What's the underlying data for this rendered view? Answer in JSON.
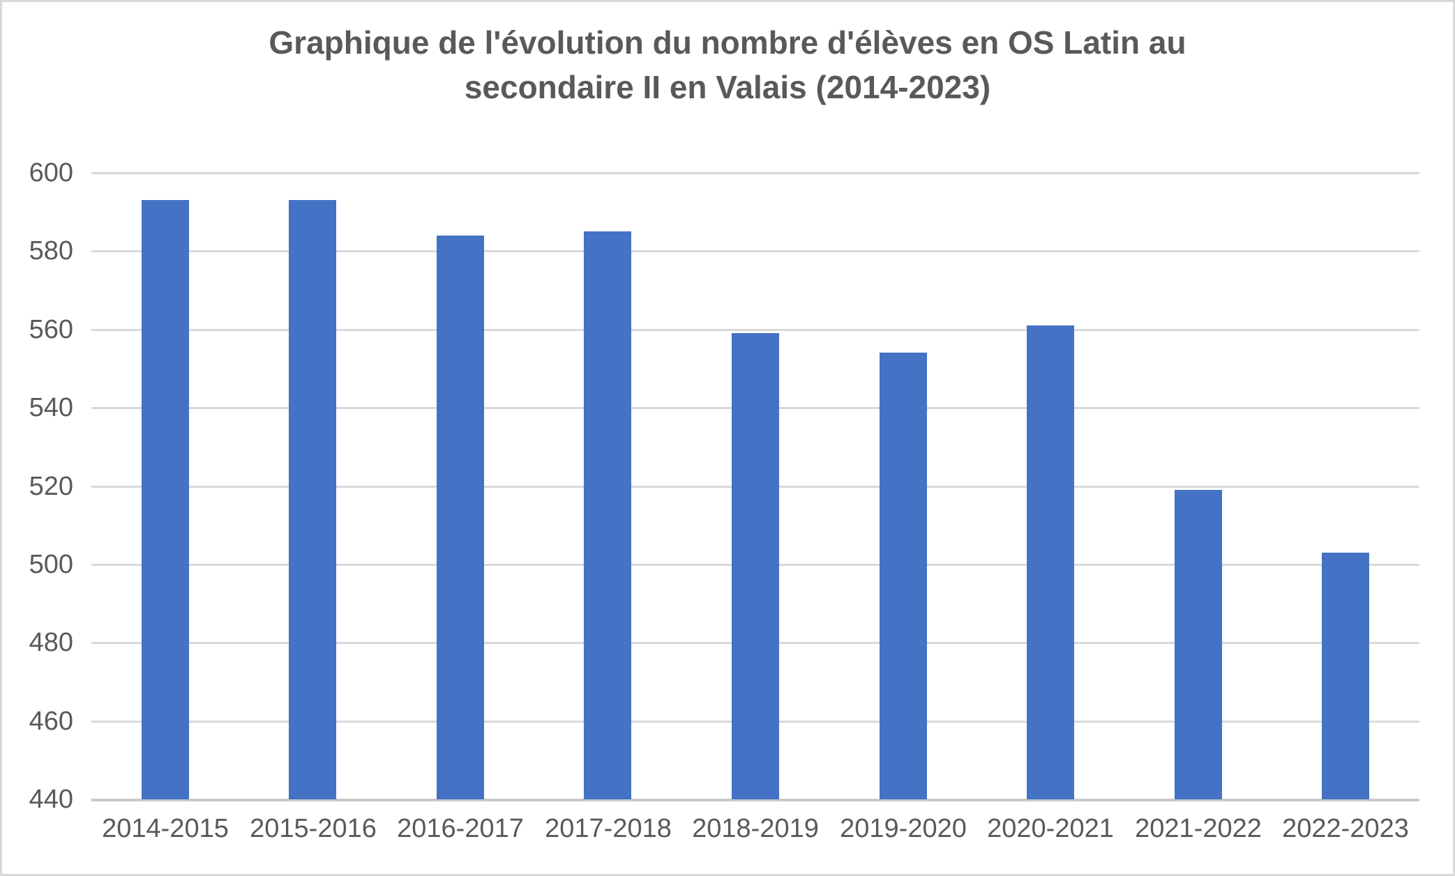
{
  "header": {
    "title_lines": [
      "Graphique de l'évolution du nombre d'élèves en OS Latin au",
      "secondaire II en Valais (2014-2023)"
    ]
  },
  "chart_data": {
    "type": "bar",
    "title": "Graphique de l'évolution du nombre d'élèves en OS Latin au secondaire II en Valais (2014-2023)",
    "categories": [
      "2014-2015",
      "2015-2016",
      "2016-2017",
      "2017-2018",
      "2018-2019",
      "2019-2020",
      "2020-2021",
      "2021-2022",
      "2022-2023"
    ],
    "values": [
      593,
      593,
      584,
      585,
      559,
      554,
      561,
      519,
      503
    ],
    "xlabel": "",
    "ylabel": "",
    "ylim": [
      440,
      600
    ],
    "ytick_step": 20,
    "yticks": [
      600,
      580,
      560,
      540,
      520,
      500,
      480,
      460,
      440
    ],
    "grid": true,
    "legend": false,
    "colors": {
      "bar": "#4472C4",
      "text": "#595959",
      "gridline": "#D9D9D9",
      "axis_line": "#C9C9C9",
      "background": "#FFFFFF",
      "frame_border": "#D8D8D8"
    }
  }
}
